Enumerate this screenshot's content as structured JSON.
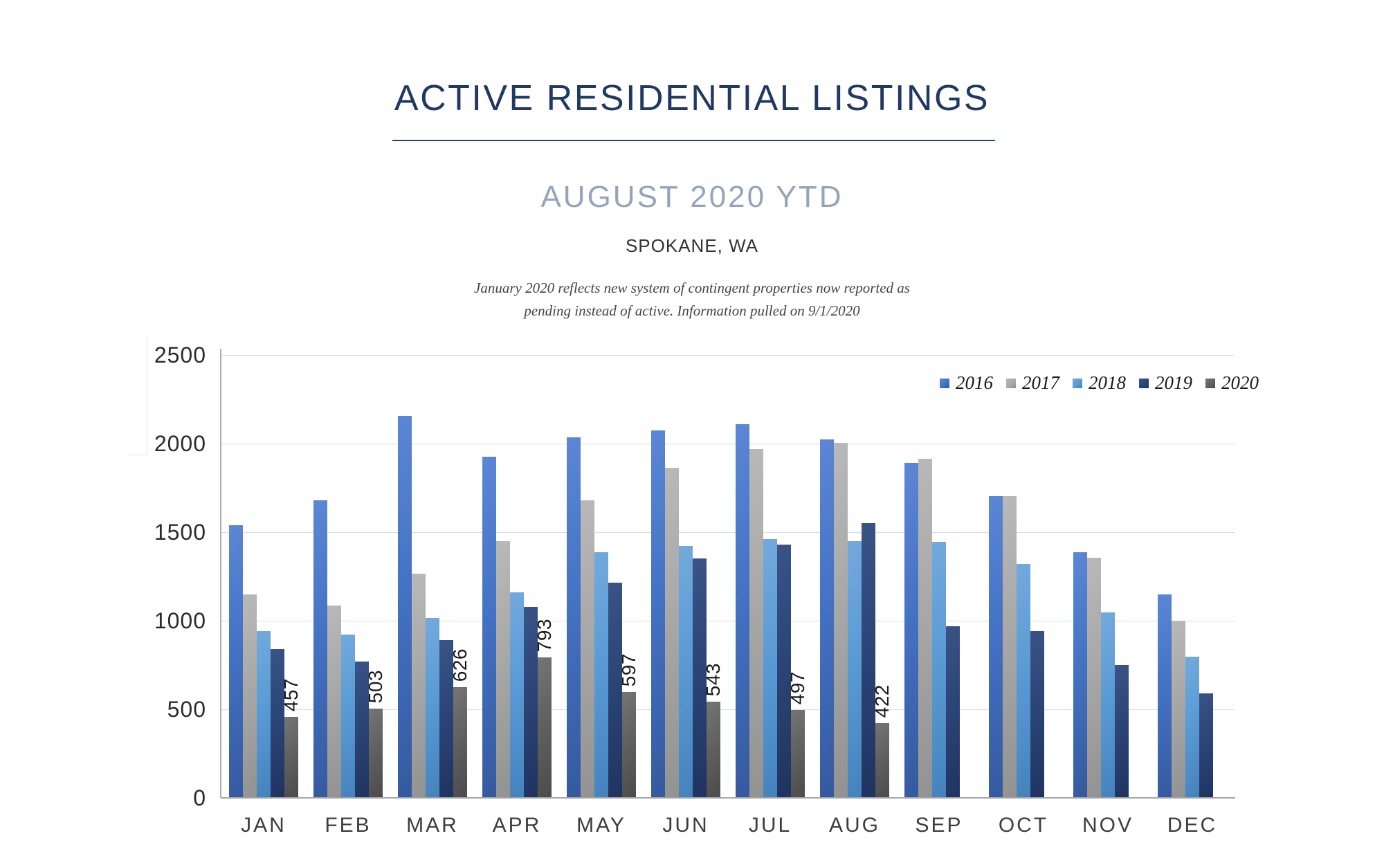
{
  "header": {
    "title": "ACTIVE RESIDENTIAL LISTINGS",
    "subtitle": "AUGUST 2020 YTD",
    "location": "SPOKANE, WA",
    "note_line1": "January 2020 reflects new system of contingent properties now reported as",
    "note_line2": "pending instead of active.  Information pulled on 9/1/2020",
    "title_color": "#1F3864",
    "subtitle_color": "#94A4BC"
  },
  "chart_data": {
    "type": "bar",
    "categories": [
      "JAN",
      "FEB",
      "MAR",
      "APR",
      "MAY",
      "JUN",
      "JUL",
      "AUG",
      "SEP",
      "OCT",
      "NOV",
      "DEC"
    ],
    "series": [
      {
        "name": "2016",
        "color": "#4472C4",
        "color_light": "#5c87d6",
        "color_dark": "#35599e",
        "values": [
          1540,
          1680,
          2155,
          1925,
          2035,
          2075,
          2110,
          2025,
          1890,
          1705,
          1385,
          1150
        ]
      },
      {
        "name": "2017",
        "color": "#a8a8a8",
        "color_light": "#b9b9b9",
        "color_dark": "#929292",
        "values": [
          1150,
          1085,
          1265,
          1450,
          1680,
          1865,
          1970,
          2005,
          1915,
          1705,
          1355,
          1000
        ]
      },
      {
        "name": "2018",
        "color": "#5B9BD5",
        "color_light": "#73aadd",
        "color_dark": "#4482bc",
        "values": [
          940,
          920,
          1015,
          1160,
          1385,
          1420,
          1460,
          1450,
          1445,
          1320,
          1045,
          795
        ]
      },
      {
        "name": "2019",
        "color": "#2c4577",
        "color_light": "#3a5488",
        "color_dark": "#1f3360",
        "values": [
          840,
          770,
          890,
          1080,
          1215,
          1350,
          1430,
          1550,
          970,
          940,
          750,
          590
        ]
      },
      {
        "name": "2020",
        "color": "#616161",
        "color_light": "#757575",
        "color_dark": "#4b4b4b",
        "values": [
          457,
          503,
          626,
          793,
          597,
          543,
          497,
          422,
          null,
          null,
          null,
          null
        ],
        "data_labels": [
          457,
          503,
          626,
          793,
          597,
          543,
          497,
          422,
          null,
          null,
          null,
          null
        ]
      }
    ],
    "ylim": [
      0,
      2500
    ],
    "yticks": [
      0,
      500,
      1000,
      1500,
      2000,
      2500
    ],
    "grid": true,
    "legend_position": "top-right",
    "gridline_color": "#d9dcea",
    "axis_color": "#a6a6a6"
  }
}
